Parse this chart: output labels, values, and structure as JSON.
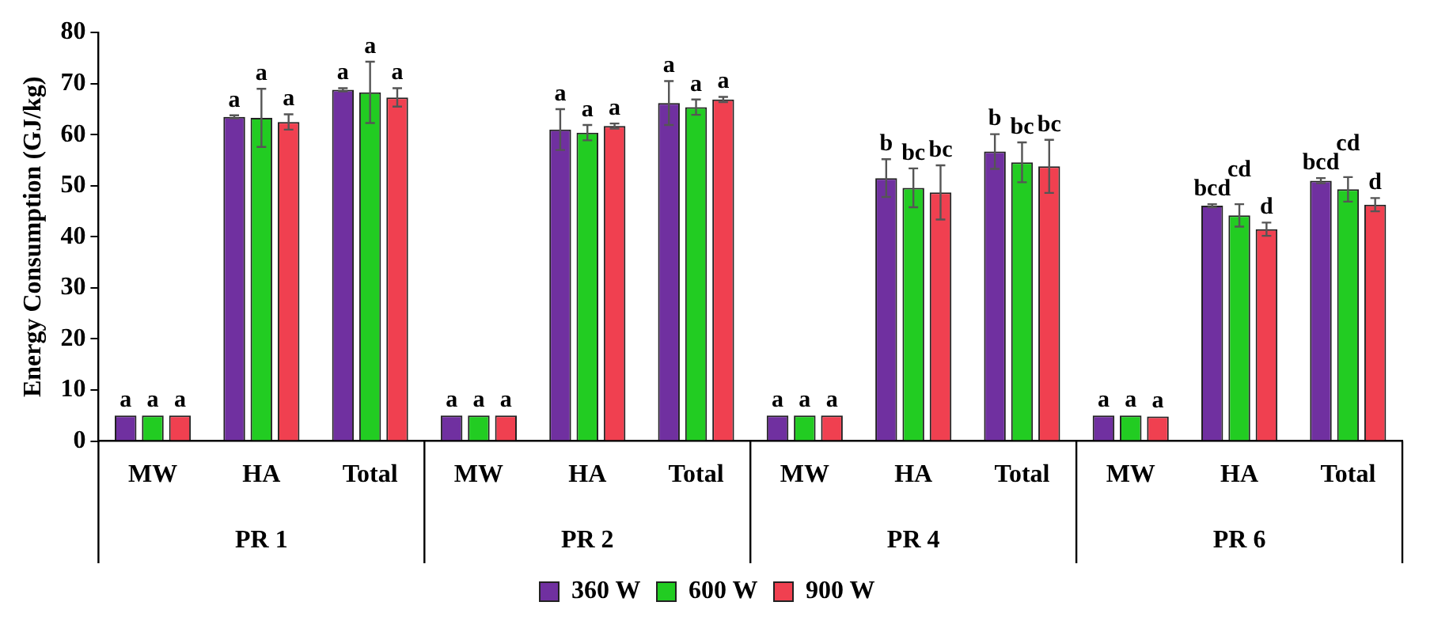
{
  "chart_data": {
    "type": "bar",
    "ylabel": "Energy Consumption (GJ/kg)",
    "categories": [
      "MW",
      "HA",
      "Total",
      "MW",
      "HA",
      "Total",
      "MW",
      "HA",
      "Total",
      "MW",
      "HA",
      "Total"
    ],
    "annotations": [
      "PR 1",
      "PR 2",
      "PR 4",
      "PR 6"
    ],
    "series": [
      {
        "name": "360 W",
        "color": "#7030a0",
        "values": [
          5,
          63.5,
          68.8,
          5,
          61,
          66.2,
          5,
          51.5,
          56.7,
          5,
          46.1,
          51
        ],
        "errors": [
          null,
          0.3,
          0.3,
          null,
          4,
          4.3,
          null,
          3.7,
          3.4,
          null,
          0.3,
          0.5
        ],
        "value_labels": [
          "a",
          "a",
          "a",
          "a",
          "a",
          "a",
          "a",
          "b",
          "b",
          "a",
          "bcd",
          "bcd"
        ]
      },
      {
        "name": "600 W",
        "color": "#22cc22",
        "values": [
          5,
          63.3,
          68.3,
          5,
          60.4,
          65.4,
          5,
          49.6,
          54.6,
          5,
          44.2,
          49.3
        ],
        "errors": [
          null,
          5.7,
          6,
          null,
          1.5,
          1.5,
          null,
          3.8,
          3.9,
          null,
          2.2,
          2.4
        ],
        "value_labels": [
          "a",
          "a",
          "a",
          "a",
          "a",
          "a",
          "a",
          "bc",
          "bc",
          "a",
          "cd",
          "cd"
        ]
      },
      {
        "name": "900 W",
        "color": "#f04050",
        "values": [
          5,
          62.5,
          67.3,
          5,
          61.7,
          66.9,
          5,
          48.7,
          53.8,
          4.8,
          41.5,
          46.3
        ],
        "errors": [
          null,
          1.5,
          1.8,
          null,
          0.5,
          0.5,
          null,
          5.3,
          5.2,
          null,
          1.3,
          1.3
        ],
        "value_labels": [
          "a",
          "a",
          "a",
          "a",
          "a",
          "a",
          "a",
          "bc",
          "bc",
          "a",
          "d",
          "d"
        ]
      }
    ],
    "ylim": [
      0,
      80
    ],
    "yticks": [
      0,
      10,
      20,
      30,
      40,
      50,
      60,
      70,
      80
    ],
    "grid": false,
    "legend": "bottom"
  }
}
